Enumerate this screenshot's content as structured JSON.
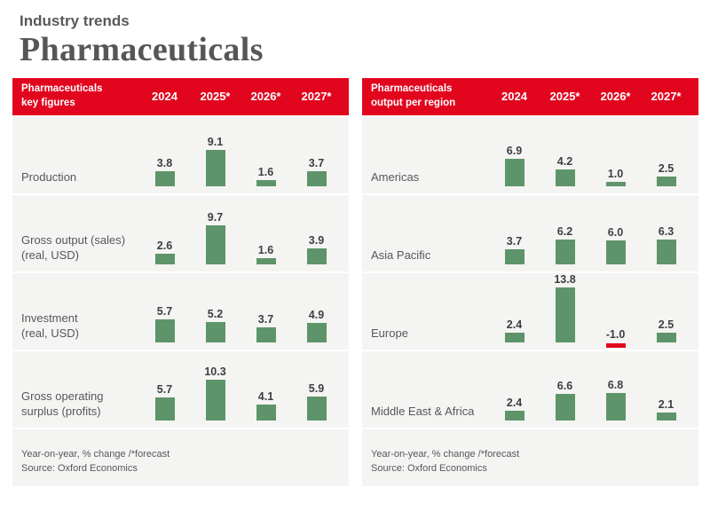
{
  "page": {
    "eyebrow": "Industry trends",
    "title": "Pharmaceuticals"
  },
  "colors": {
    "accent_red": "#e2051e",
    "bar_green": "#5e9469",
    "bar_negative_red": "#e2051e",
    "panel_bg": "#f4f4f2",
    "header_text": "#ffffff",
    "value_text": "#3e3e40",
    "label_text": "#57575a"
  },
  "chart_data": [
    {
      "type": "bar",
      "title": "Pharmaceuticals\nkey figures",
      "columns": [
        "2024",
        "2025*",
        "2026*",
        "2027*"
      ],
      "rows": [
        {
          "label": "Production",
          "values": [
            3.8,
            9.1,
            1.6,
            3.7
          ]
        },
        {
          "label": "Gross output (sales)\n(real, USD)",
          "values": [
            2.6,
            9.7,
            1.6,
            3.9
          ]
        },
        {
          "label": "Investment\n(real, USD)",
          "values": [
            5.7,
            5.2,
            3.7,
            4.9
          ]
        },
        {
          "label": "Gross operating\nsurplus (profits)",
          "values": [
            5.7,
            10.3,
            4.1,
            5.9
          ]
        }
      ],
      "note": "Year-on-year, % change /*forecast",
      "source": "Source: Oxford Economics",
      "ylim": [
        -1.5,
        14
      ],
      "grid": false,
      "legend": "none"
    },
    {
      "type": "bar",
      "title": "Pharmaceuticals\noutput per region",
      "columns": [
        "2024",
        "2025*",
        "2026*",
        "2027*"
      ],
      "rows": [
        {
          "label": "Americas",
          "values": [
            6.9,
            4.2,
            1.0,
            2.5
          ]
        },
        {
          "label": "Asia Pacific",
          "values": [
            3.7,
            6.2,
            6.0,
            6.3
          ]
        },
        {
          "label": "Europe",
          "values": [
            2.4,
            13.8,
            -1.0,
            2.5
          ]
        },
        {
          "label": "Middle East & Africa",
          "values": [
            2.4,
            6.6,
            6.8,
            2.1
          ]
        }
      ],
      "note": "Year-on-year, % change /*forecast",
      "source": "Source: Oxford Economics",
      "ylim": [
        -1.5,
        14
      ],
      "grid": false,
      "legend": "none"
    }
  ]
}
